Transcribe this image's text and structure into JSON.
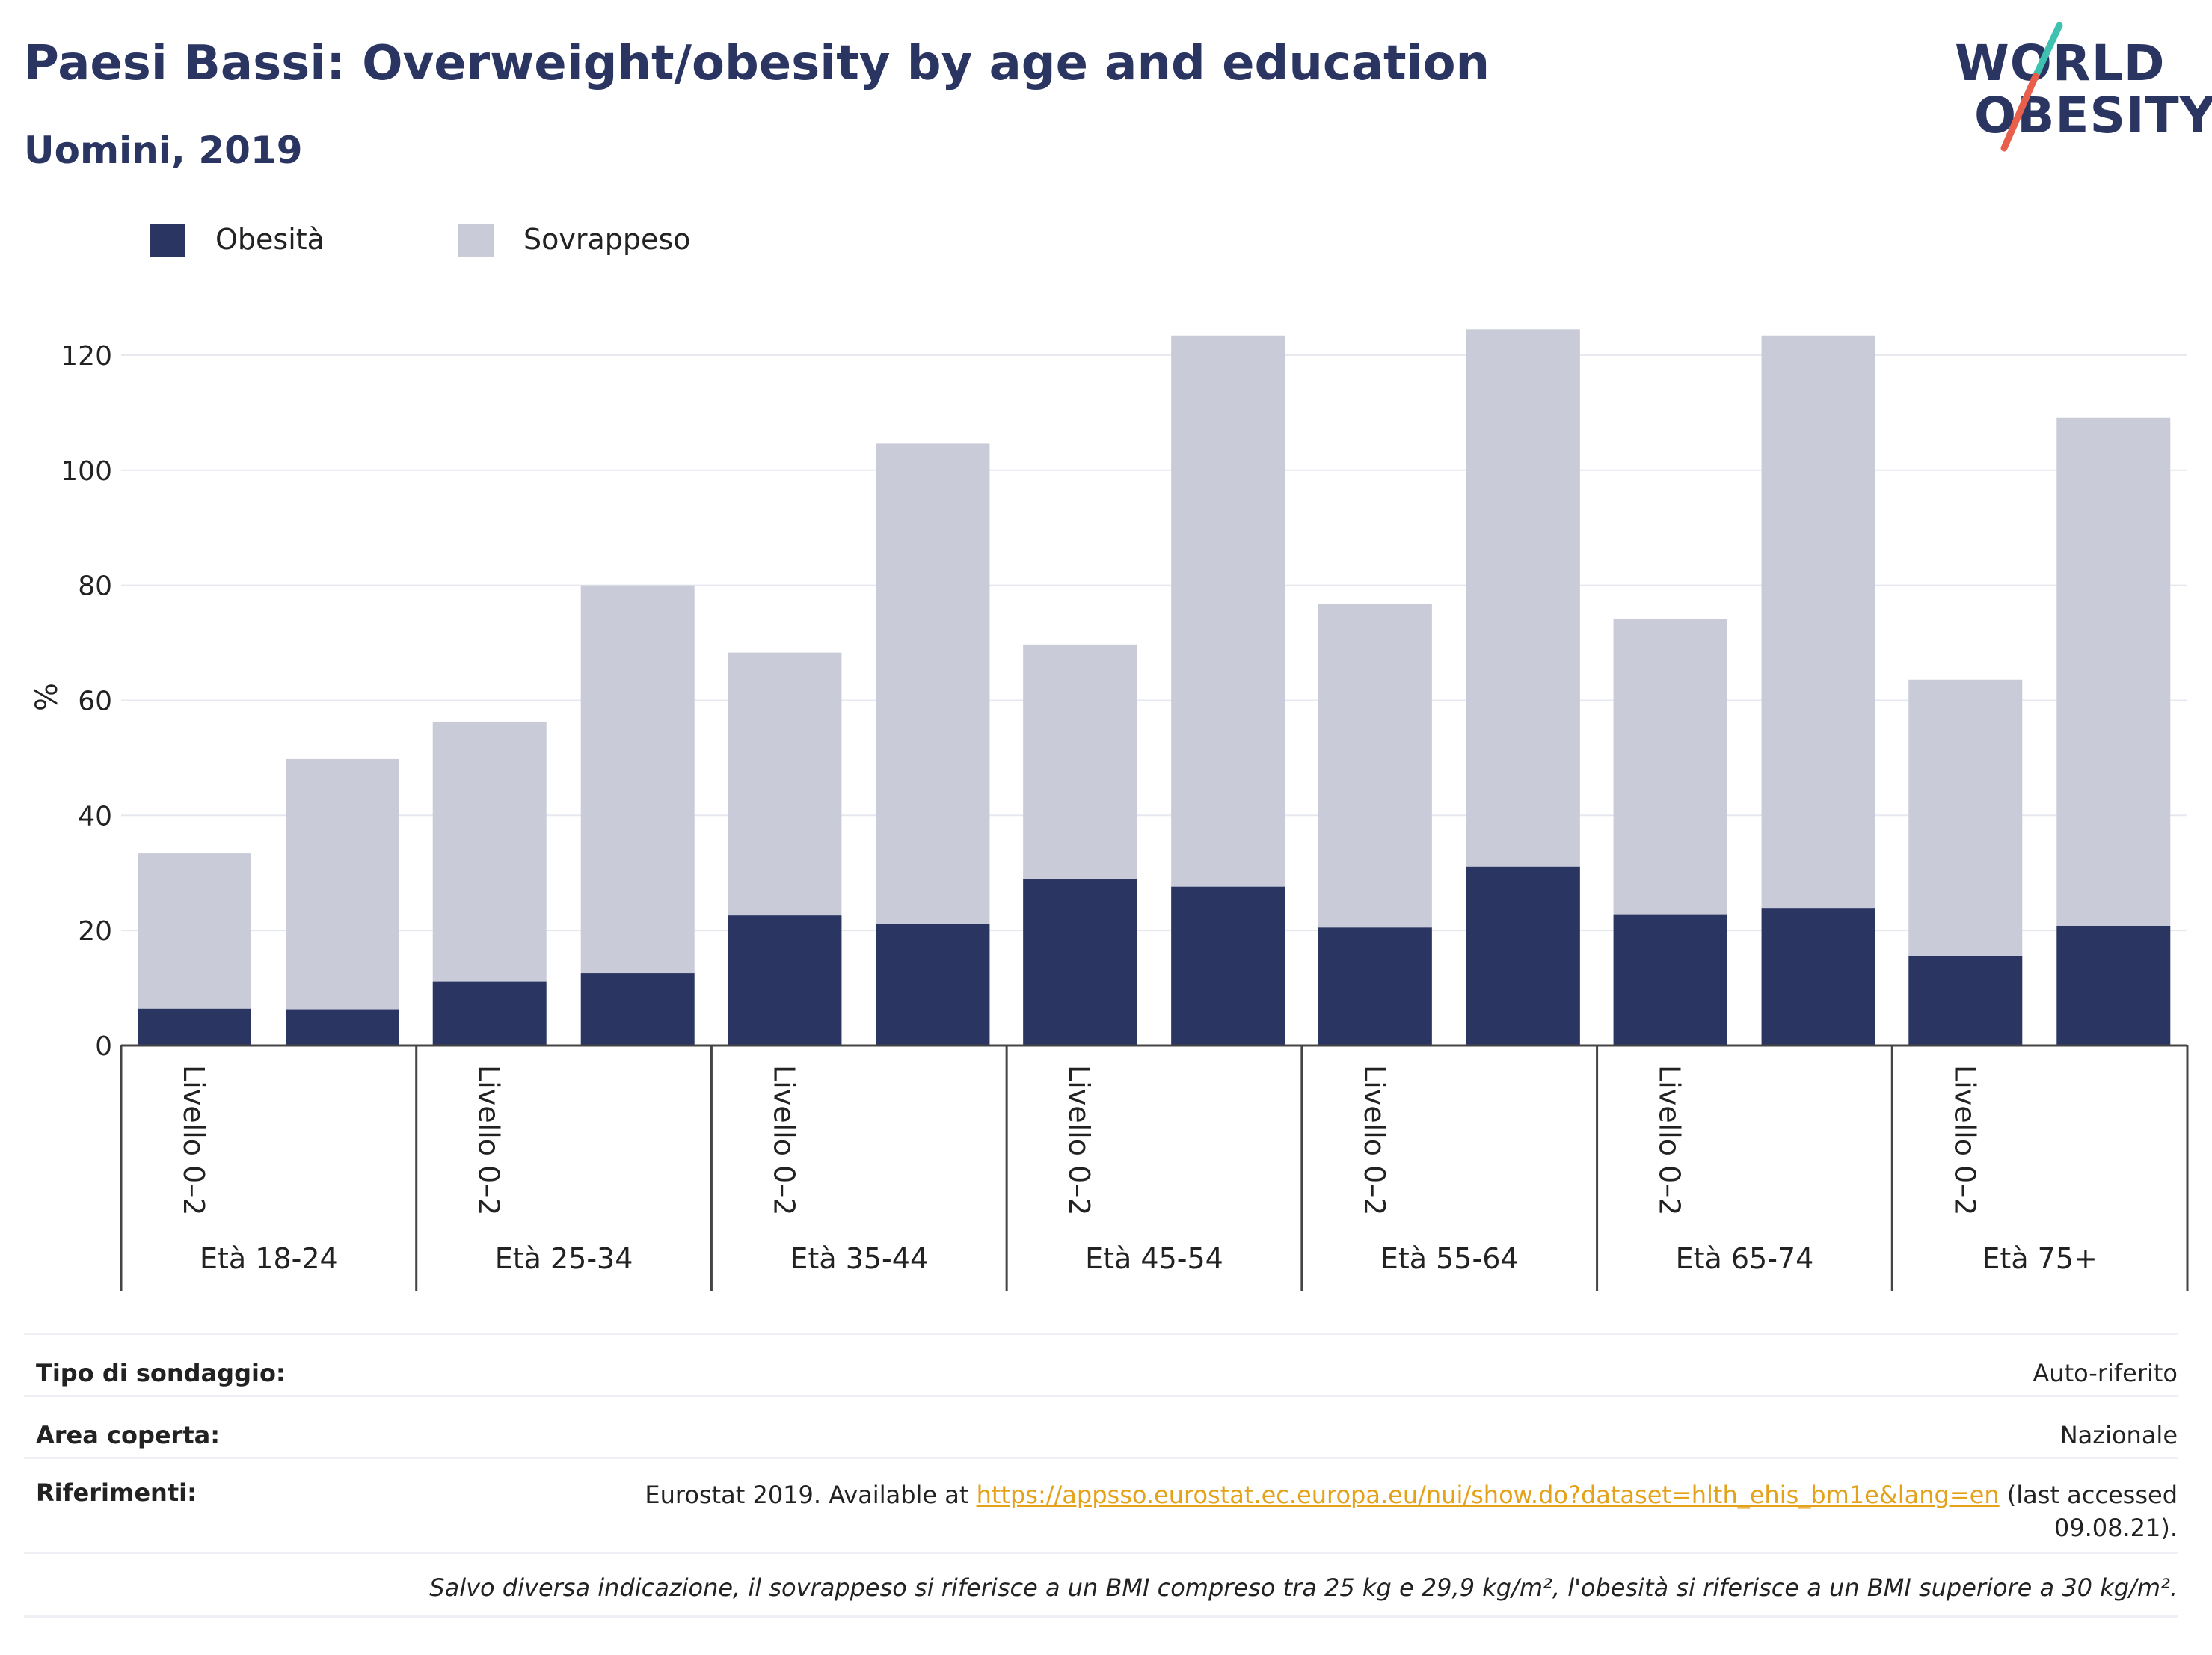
{
  "header": {
    "title": "Paesi Bassi: Overweight/obesity by age and education",
    "subtitle": "Uomini, 2019"
  },
  "logo": {
    "line1": "WORLD",
    "line2": "OBESITY",
    "colors": {
      "text": "#2a3562",
      "slash_top": "#3fc1b0",
      "slash_bottom": "#e8604c"
    }
  },
  "legend": [
    {
      "label": "Obesità",
      "color": "#2a3562"
    },
    {
      "label": "Sovrappeso",
      "color": "#c9ccd8"
    }
  ],
  "chart_data": {
    "type": "bar",
    "stacked": true,
    "ylabel": "%",
    "ylim": [
      0,
      130
    ],
    "yticks": [
      0,
      20,
      40,
      60,
      80,
      100,
      120
    ],
    "grid": true,
    "groups": [
      "Età 18-24",
      "Età 25-34",
      "Età 35-44",
      "Età 45-54",
      "Età 55-64",
      "Età 65-74",
      "Età 75+"
    ],
    "bar_labels": [
      "Livello 0–2",
      "",
      "Livello 0–2",
      "",
      "Livello 0–2",
      "",
      "Livello 0–2",
      "",
      "Livello 0–2",
      "",
      "Livello 0–2",
      "",
      "Livello 0–2",
      ""
    ],
    "series": [
      {
        "name": "Obesità",
        "color": "#2a3562",
        "values": [
          6.4,
          6.3,
          11.1,
          12.6,
          22.6,
          21.1,
          28.9,
          27.6,
          20.5,
          31.1,
          22.8,
          23.9,
          15.6,
          20.8
        ]
      },
      {
        "name": "Sovrappeso",
        "color": "#c9ccd8",
        "values": [
          27.0,
          43.5,
          45.2,
          67.4,
          45.7,
          83.5,
          40.8,
          95.8,
          56.2,
          93.4,
          51.3,
          99.5,
          48.0,
          88.3
        ]
      }
    ]
  },
  "info": {
    "rows": [
      {
        "label": "Tipo di sondaggio:",
        "value": "Auto-riferito"
      },
      {
        "label": "Area coperta:",
        "value": "Nazionale"
      }
    ],
    "references": {
      "label": "Riferimenti:",
      "prefix": "Eurostat 2019. Available at ",
      "link": "https://appsso.eurostat.ec.europa.eu/nui/show.do?dataset=hlth_ehis_bm1e&lang=en",
      "suffix": " (last accessed",
      "suffix2": "09.08.21)."
    },
    "note": "Salvo diversa indicazione, il sovrappeso si riferisce a un BMI compreso tra 25 kg e 29,9 kg/m², l'obesità si riferisce a un BMI superiore a 30 kg/m²."
  }
}
